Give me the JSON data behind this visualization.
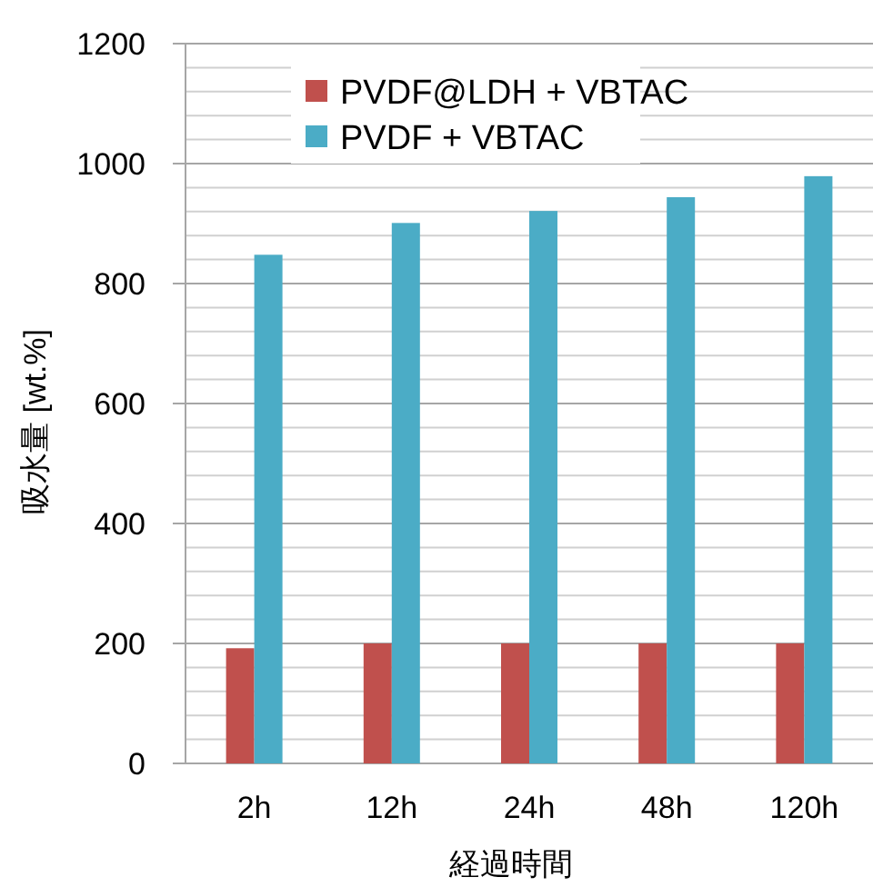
{
  "chart_data": {
    "type": "bar",
    "xlabel": "経過時間",
    "ylabel": "吸水量 [wt.%]",
    "categories": [
      "2h",
      "12h",
      "24h",
      "48h",
      "120h"
    ],
    "series": [
      {
        "name": "PVDF@LDH + VBTAC",
        "color": "#c0504d",
        "values": [
          192,
          200,
          200,
          200,
          200
        ]
      },
      {
        "name": "PVDF + VBTAC",
        "color": "#4bacc6",
        "values": [
          848,
          901,
          921,
          944,
          979
        ]
      }
    ],
    "ylim": [
      0,
      1200
    ],
    "yticks": [
      0,
      200,
      400,
      600,
      800,
      1000,
      1200
    ],
    "grid": "y",
    "legend": "top"
  }
}
